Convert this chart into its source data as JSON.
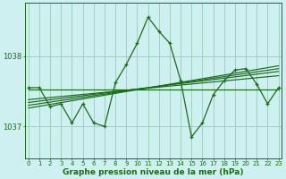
{
  "title": "Graphe pression niveau de la mer (hPa)",
  "background_color": "#cff0f0",
  "grid_color": "#99ccbb",
  "line_color": "#1a6b1a",
  "x_labels": [
    "0",
    "1",
    "2",
    "3",
    "4",
    "5",
    "6",
    "7",
    "8",
    "9",
    "10",
    "11",
    "12",
    "13",
    "14",
    "15",
    "16",
    "17",
    "18",
    "19",
    "20",
    "21",
    "22",
    "23"
  ],
  "yticks": [
    1037,
    1038
  ],
  "ylim": [
    1036.55,
    1038.75
  ],
  "xlim": [
    -0.3,
    23.3
  ],
  "trend_lines": [
    [
      [
        0,
        23
      ],
      [
        1037.52,
        1037.52
      ]
    ],
    [
      [
        0,
        23
      ],
      [
        1037.38,
        1037.72
      ]
    ],
    [
      [
        0,
        23
      ],
      [
        1037.34,
        1037.78
      ]
    ],
    [
      [
        0,
        23
      ],
      [
        1037.3,
        1037.82
      ]
    ],
    [
      [
        0,
        23
      ],
      [
        1037.26,
        1037.86
      ]
    ]
  ],
  "main_series_x": [
    0,
    1,
    2,
    3,
    4,
    5,
    6,
    7,
    8,
    9,
    10,
    11,
    12,
    13,
    14,
    15,
    16,
    17,
    18,
    19,
    20,
    21,
    22,
    23
  ],
  "main_series_y": [
    1037.55,
    1037.55,
    1037.28,
    1037.32,
    1037.05,
    1037.32,
    1037.05,
    1037.0,
    1037.62,
    1037.88,
    1038.18,
    1038.55,
    1038.35,
    1038.18,
    1037.65,
    1036.85,
    1037.05,
    1037.45,
    1037.65,
    1037.8,
    1037.82,
    1037.6,
    1037.32,
    1037.55
  ]
}
